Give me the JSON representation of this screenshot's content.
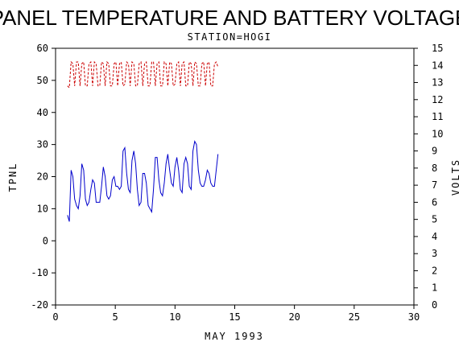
{
  "chart_data": {
    "type": "line",
    "title": "PANEL TEMPERATURE AND BATTERY VOLTAGE",
    "subtitle": "STATION=HOGI",
    "xlabel": "MAY 1993",
    "ylabel_left": "TPNL",
    "ylabel_right": "VOLTS",
    "xlim": [
      0,
      30
    ],
    "ylim_left": [
      -20,
      60
    ],
    "ylim_right": [
      0,
      15
    ],
    "x_ticks": [
      "0",
      "5",
      "10",
      "15",
      "20",
      "25",
      "30"
    ],
    "y_left_ticks": [
      "-20",
      "-10",
      "0",
      "10",
      "20",
      "30",
      "40",
      "50",
      "60"
    ],
    "y_right_ticks": [
      "0",
      "1",
      "2",
      "3",
      "4",
      "5",
      "6",
      "7",
      "8",
      "9",
      "10",
      "11",
      "12",
      "13",
      "14",
      "15"
    ],
    "grid": false,
    "series": [
      {
        "axis": "left",
        "color": "#0000cc",
        "style": "solid",
        "x": [
          1.0,
          1.15,
          1.3,
          1.45,
          1.6,
          1.75,
          1.9,
          2.05,
          2.2,
          2.35,
          2.5,
          2.65,
          2.8,
          2.95,
          3.1,
          3.25,
          3.4,
          3.55,
          3.7,
          3.85,
          4.0,
          4.15,
          4.3,
          4.45,
          4.6,
          4.75,
          4.9,
          5.05,
          5.2,
          5.35,
          5.5,
          5.65,
          5.8,
          5.95,
          6.1,
          6.25,
          6.4,
          6.55,
          6.7,
          6.85,
          7.0,
          7.15,
          7.3,
          7.45,
          7.6,
          7.75,
          7.9,
          8.05,
          8.2,
          8.35,
          8.5,
          8.65,
          8.8,
          8.95,
          9.1,
          9.25,
          9.4,
          9.55,
          9.7,
          9.85,
          10.0,
          10.15,
          10.3,
          10.45,
          10.6,
          10.75,
          10.9,
          11.05,
          11.2,
          11.35,
          11.5,
          11.65,
          11.8,
          11.95,
          12.1,
          12.25,
          12.4,
          12.55,
          12.7,
          12.85,
          13.0,
          13.15,
          13.3,
          13.45,
          13.6
        ],
        "y": [
          8,
          6,
          22,
          20,
          13,
          11,
          10,
          14,
          24,
          22,
          13,
          11,
          12,
          16,
          19,
          18,
          12,
          12,
          12,
          17,
          23,
          20,
          14,
          13,
          14,
          19,
          20,
          17,
          17,
          16,
          17,
          28,
          29,
          21,
          16,
          15,
          25,
          28,
          24,
          16,
          11,
          12,
          21,
          21,
          18,
          11,
          10,
          9,
          16,
          26,
          26,
          19,
          15,
          14,
          18,
          24,
          27,
          22,
          18,
          17,
          23,
          26,
          22,
          16,
          15,
          24,
          26,
          24,
          17,
          16,
          28,
          31,
          30,
          22,
          18,
          17,
          17,
          19,
          22,
          21,
          18,
          17,
          17,
          22,
          27
        ],
        "note_x_span": [
          1.0,
          13.6
        ]
      },
      {
        "axis": "right",
        "color": "#cc0000",
        "style": "dashed",
        "x": [
          1.0,
          1.15,
          1.3,
          1.45,
          1.6,
          1.75,
          1.9,
          2.05,
          2.2,
          2.35,
          2.5,
          2.65,
          2.8,
          2.95,
          3.1,
          3.25,
          3.4,
          3.55,
          3.7,
          3.85,
          4.0,
          4.15,
          4.3,
          4.45,
          4.6,
          4.75,
          4.9,
          5.05,
          5.2,
          5.35,
          5.5,
          5.65,
          5.8,
          5.95,
          6.1,
          6.25,
          6.4,
          6.55,
          6.7,
          6.85,
          7.0,
          7.15,
          7.3,
          7.45,
          7.6,
          7.75,
          7.9,
          8.05,
          8.2,
          8.35,
          8.5,
          8.65,
          8.8,
          8.95,
          9.1,
          9.25,
          9.4,
          9.55,
          9.7,
          9.85,
          10.0,
          10.15,
          10.3,
          10.45,
          10.6,
          10.75,
          10.9,
          11.05,
          11.2,
          11.35,
          11.5,
          11.65,
          11.8,
          11.95,
          12.1,
          12.25,
          12.4,
          12.55,
          12.7,
          12.85,
          13.0,
          13.15,
          13.3,
          13.45,
          13.6
        ],
        "y": [
          12.8,
          12.7,
          14.2,
          14.1,
          12.8,
          14.2,
          14.2,
          12.8,
          14.1,
          14.2,
          12.8,
          12.8,
          14.1,
          14.2,
          12.8,
          14.2,
          14.1,
          12.8,
          12.8,
          14.2,
          14.1,
          12.8,
          14.2,
          14.1,
          12.8,
          12.8,
          14.1,
          14.2,
          12.8,
          14.1,
          14.2,
          12.8,
          12.9,
          14.2,
          14.1,
          12.8,
          14.2,
          14.1,
          12.8,
          12.8,
          14.1,
          14.2,
          12.8,
          14.1,
          14.2,
          12.8,
          12.8,
          14.2,
          14.2,
          12.8,
          14.1,
          14.2,
          12.8,
          12.8,
          14.2,
          14.1,
          12.8,
          14.2,
          14.1,
          12.8,
          12.9,
          14.1,
          14.2,
          12.8,
          14.1,
          14.2,
          12.8,
          12.8,
          14.2,
          14.1,
          12.8,
          14.2,
          14.1,
          12.8,
          12.8,
          14.1,
          14.2,
          12.8,
          14.1,
          14.2,
          12.8,
          12.8,
          14.1,
          14.2,
          13.9
        ]
      }
    ]
  }
}
